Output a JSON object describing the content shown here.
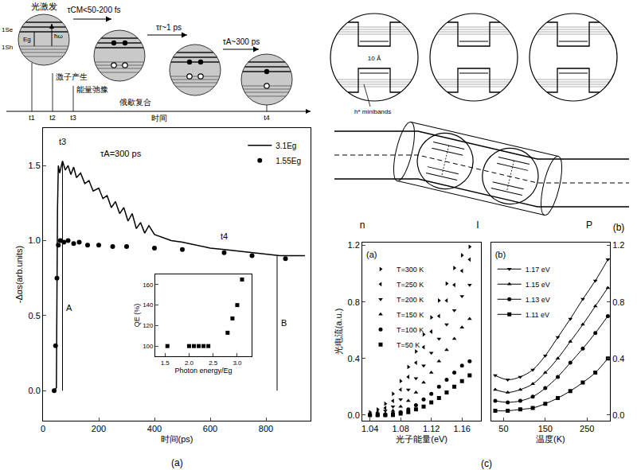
{
  "chart_data": [
    {
      "type": "line",
      "label": "(a)",
      "xlabel": "时间(ps)",
      "ylabel": "-Δαs(arb.units)",
      "xlim": [
        0,
        960
      ],
      "xticks": [
        0,
        200,
        400,
        600,
        800
      ],
      "ylim": [
        -0.2,
        1.75
      ],
      "yticks": [
        {
          "value": 0,
          "label": "0.0"
        },
        0.5,
        {
          "value": 1,
          "label": "1.0"
        },
        1.5
      ],
      "legend": "top right",
      "series": [
        {
          "name": "3.1Eg",
          "color": "#000000",
          "type": "line",
          "line_style": "solid",
          "x": [
            40,
            48,
            52,
            55,
            60,
            70,
            80,
            90,
            100,
            110,
            120,
            135,
            150,
            165,
            180,
            200,
            215,
            230,
            245,
            260,
            275,
            290,
            305,
            320,
            335,
            350,
            365,
            380,
            400,
            430,
            460,
            500,
            550,
            600,
            650,
            700,
            750,
            800,
            850,
            900,
            940
          ],
          "values": [
            0,
            0.02,
            1.2,
            1.5,
            1.45,
            1.53,
            1.47,
            1.5,
            1.44,
            1.49,
            1.42,
            1.45,
            1.38,
            1.4,
            1.33,
            1.35,
            1.28,
            1.3,
            1.22,
            1.26,
            1.18,
            1.22,
            1.13,
            1.18,
            1.08,
            1.12,
            1.05,
            1.1,
            1.04,
            1.02,
            1.0,
            0.99,
            0.97,
            0.95,
            0.94,
            0.93,
            0.92,
            0.91,
            0.9,
            0.9,
            0.9
          ]
        },
        {
          "name": "1.55Eg",
          "color": "#000000",
          "type": "scatter",
          "marker": "circle",
          "x": [
            40,
            45,
            50,
            55,
            62,
            75,
            90,
            110,
            130,
            160,
            200,
            250,
            300,
            400,
            500,
            650,
            750,
            870
          ],
          "values": [
            0,
            0.3,
            0.75,
            0.97,
            1.0,
            0.99,
            1.0,
            0.98,
            0.99,
            0.97,
            0.97,
            0.96,
            0.96,
            0.95,
            0.94,
            0.92,
            0.9,
            0.88
          ]
        }
      ],
      "annotations": [
        {
          "text": "τA=300 ps",
          "x": 200,
          "y": 1.58
        },
        {
          "text": "t3",
          "x": 50,
          "y": 1.66
        },
        {
          "text": "t4",
          "x": 630,
          "y": 1.03
        },
        {
          "text": "A",
          "x": 78,
          "y": 0.55
        },
        {
          "text": "B",
          "x": 848,
          "y": 0.45
        }
      ],
      "spans": [
        {
          "x": 70,
          "y": [
            0,
            1.52
          ]
        },
        {
          "x": 840,
          "y": [
            0,
            0.9
          ]
        }
      ],
      "inset": {
        "type": "scatter",
        "xlabel": "Photon energy/Eg",
        "ylabel": "QE (%)",
        "xlim": [
          1.3,
          3.3
        ],
        "xticks": [
          1.5,
          {
            "value": 2,
            "label": "2.0"
          },
          2.5,
          {
            "value": 3,
            "label": "3.0"
          }
        ],
        "ylim": [
          90,
          170
        ],
        "yticks": [
          100,
          120,
          140,
          160
        ],
        "marker": "square",
        "color": "#000000",
        "x": [
          1.55,
          2.0,
          2.1,
          2.2,
          2.3,
          2.4,
          2.8,
          2.9,
          3.0,
          3.1
        ],
        "values": [
          100,
          100,
          100,
          100,
          100,
          100,
          113,
          127,
          140,
          165
        ]
      }
    },
    {
      "type": "scatter",
      "label": "(a)",
      "xlabel": "光子能量(eV)",
      "ylabel": "光电流(a.u.)",
      "xlim": [
        1.03,
        1.185
      ],
      "xticks": [
        1.04,
        1.08,
        1.12,
        1.16
      ],
      "ylim": [
        -0.04,
        1.22
      ],
      "yticks": [
        {
          "value": 0,
          "label": "0.0"
        },
        0.4,
        0.8,
        1.2
      ],
      "legend": "top left",
      "x": [
        1.04,
        1.05,
        1.06,
        1.07,
        1.08,
        1.09,
        1.1,
        1.11,
        1.12,
        1.13,
        1.14,
        1.15,
        1.16,
        1.17
      ],
      "series": [
        {
          "name": "T=300 K",
          "color": "#000000",
          "marker": "triangle-right",
          "values": [
            0.02,
            0.04,
            0.08,
            0.15,
            0.24,
            0.34,
            0.45,
            0.57,
            0.69,
            0.81,
            0.93,
            1.04,
            1.13,
            1.19
          ]
        },
        {
          "name": "T=250 K",
          "color": "#000000",
          "marker": "triangle-left",
          "values": [
            0.01,
            0.02,
            0.05,
            0.1,
            0.18,
            0.27,
            0.37,
            0.48,
            0.59,
            0.7,
            0.81,
            0.92,
            1.02,
            1.1
          ]
        },
        {
          "name": "T=200 K",
          "color": "#000000",
          "marker": "triangle-down",
          "values": [
            0,
            0.01,
            0.03,
            0.06,
            0.11,
            0.18,
            0.26,
            0.35,
            0.44,
            0.54,
            0.64,
            0.74,
            0.84,
            0.92
          ]
        },
        {
          "name": "T=150 K",
          "color": "#000000",
          "marker": "triangle-up",
          "values": [
            0,
            0,
            0.01,
            0.03,
            0.06,
            0.1,
            0.16,
            0.23,
            0.3,
            0.38,
            0.46,
            0.54,
            0.62,
            0.68
          ]
        },
        {
          "name": "T=100 K",
          "color": "#000000",
          "marker": "circle",
          "values": [
            0,
            0,
            0,
            0.01,
            0.02,
            0.04,
            0.07,
            0.11,
            0.15,
            0.2,
            0.25,
            0.3,
            0.35,
            0.38
          ]
        },
        {
          "name": "T=50 K",
          "color": "#000000",
          "marker": "square",
          "values": [
            0,
            0,
            0,
            0,
            0.01,
            0.02,
            0.04,
            0.06,
            0.09,
            0.12,
            0.16,
            0.2,
            0.24,
            0.28
          ]
        }
      ]
    },
    {
      "type": "scatter",
      "label": "(b)",
      "xlabel": "温度(K)",
      "xlim": [
        20,
        305
      ],
      "xticks": [
        50,
        150,
        250
      ],
      "ylim": [
        -0.04,
        1.22
      ],
      "yticks": [
        {
          "value": 0,
          "label": "0.0"
        },
        0.4,
        0.8,
        1.2
      ],
      "legend": "top left",
      "x": [
        30,
        60,
        90,
        120,
        150,
        180,
        210,
        240,
        270,
        300
      ],
      "series": [
        {
          "name": "1.17 eV",
          "color": "#000000",
          "marker": "triangle-down",
          "line_style": "solid",
          "values": [
            0.28,
            0.25,
            0.27,
            0.32,
            0.42,
            0.55,
            0.68,
            0.82,
            0.95,
            1.1
          ]
        },
        {
          "name": "1.15 eV",
          "color": "#000000",
          "marker": "triangle-up",
          "line_style": "solid",
          "values": [
            0.18,
            0.16,
            0.18,
            0.22,
            0.3,
            0.4,
            0.52,
            0.64,
            0.77,
            0.9
          ]
        },
        {
          "name": "1.13 eV",
          "color": "#000000",
          "marker": "circle",
          "line_style": "solid",
          "values": [
            0.1,
            0.09,
            0.1,
            0.13,
            0.19,
            0.27,
            0.37,
            0.47,
            0.58,
            0.7
          ]
        },
        {
          "name": "1.11 eV",
          "color": "#000000",
          "marker": "square",
          "line_style": "solid",
          "values": [
            0.03,
            0.03,
            0.04,
            0.05,
            0.08,
            0.12,
            0.17,
            0.23,
            0.3,
            0.4
          ]
        }
      ]
    }
  ],
  "panel_c": {
    "label": "(c)"
  },
  "scheme_a": {
    "top_labels": [
      "光激发",
      "τCM<50-200 fs",
      "τr~1 ps",
      "τA~300 ps"
    ],
    "level_labels": [
      "1Se",
      "1Sh",
      "Eg",
      "ħω"
    ],
    "stage_labels": [
      "激子产生",
      "能量弛豫",
      "俄歇复合"
    ],
    "time_marks": [
      "t1",
      "t2",
      "t3",
      "t4"
    ],
    "time_axis": "时间"
  },
  "scheme_b": {
    "minibands": "h* minibands",
    "well_width": "10 Å",
    "regions": [
      "n",
      "I",
      "P"
    ],
    "label": "(b)"
  }
}
